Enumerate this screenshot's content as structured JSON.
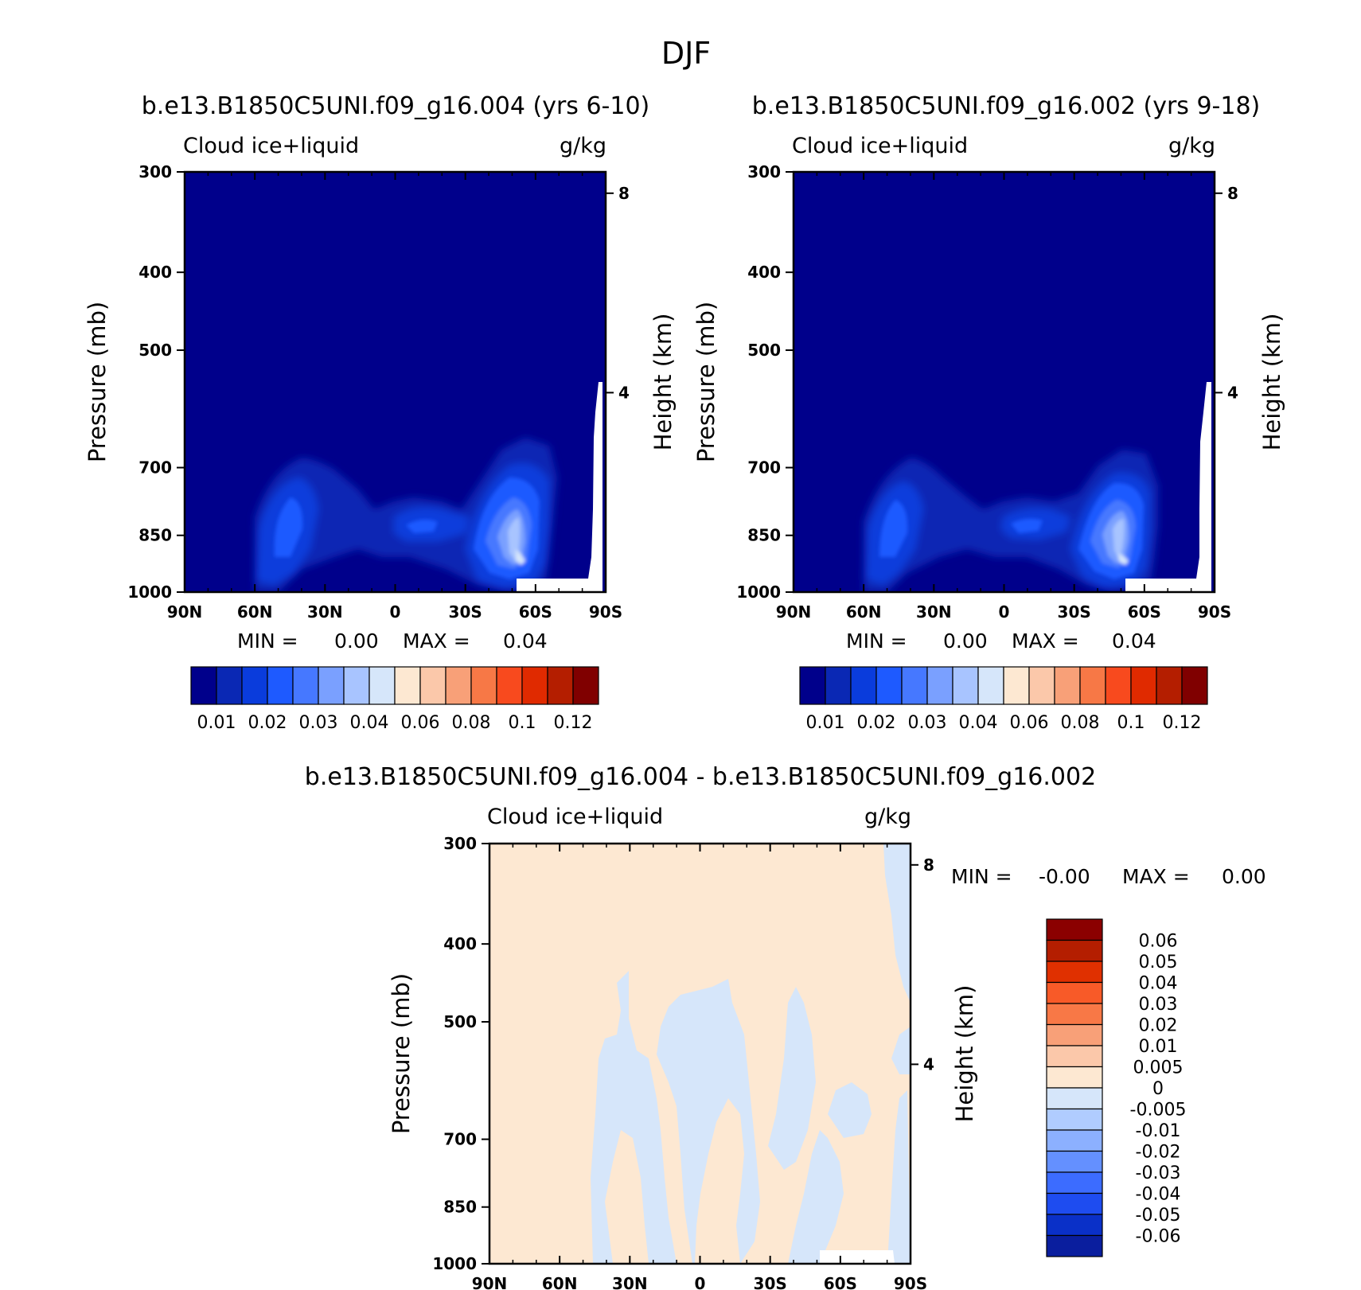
{
  "figure": {
    "title": "DJF"
  },
  "chart_data": [
    {
      "type": "heatmap",
      "title": "b.e13.B1850C5UNI.f09_g16.004 (yrs 6-10)",
      "variable_label": "Cloud ice+liquid",
      "units": "g/kg",
      "ylabel": "Pressure (mb)",
      "ylabel_right": "Height (km)",
      "x_ticks": [
        "90N",
        "60N",
        "30N",
        "0",
        "30S",
        "60S",
        "90S"
      ],
      "y_ticks": [
        "300",
        "400",
        "500",
        "700",
        "850",
        "1000"
      ],
      "y_right_ticks": [
        "8",
        "4"
      ],
      "stats": {
        "min_label": "MIN =",
        "min": "0.00",
        "max_label": "MAX =",
        "max": "0.04"
      },
      "features": [
        {
          "region": "60N-45N, 850-1000 mb",
          "value": 0.02
        },
        {
          "region": "15N-5S, ~870 mb",
          "value": 0.02
        },
        {
          "region": "40S-60S, 850-1000 mb",
          "value": 0.04
        }
      ]
    },
    {
      "type": "heatmap",
      "title": "b.e13.B1850C5UNI.f09_g16.002 (yrs 9-18)",
      "variable_label": "Cloud ice+liquid",
      "units": "g/kg",
      "ylabel": "Pressure (mb)",
      "ylabel_right": "Height (km)",
      "x_ticks": [
        "90N",
        "60N",
        "30N",
        "0",
        "30S",
        "60S",
        "90S"
      ],
      "y_ticks": [
        "300",
        "400",
        "500",
        "700",
        "850",
        "1000"
      ],
      "y_right_ticks": [
        "8",
        "4"
      ],
      "stats": {
        "min_label": "MIN =",
        "min": "0.00",
        "max_label": "MAX =",
        "max": "0.04"
      },
      "features": [
        {
          "region": "60N-45N, 850-1000 mb",
          "value": 0.02
        },
        {
          "region": "15N-5S, ~870 mb",
          "value": 0.02
        },
        {
          "region": "40S-60S, 850-1000 mb",
          "value": 0.04
        }
      ]
    },
    {
      "type": "heatmap",
      "title": "b.e13.B1850C5UNI.f09_g16.004 - b.e13.B1850C5UNI.f09_g16.002",
      "variable_label": "Cloud ice+liquid",
      "units": "g/kg",
      "ylabel": "Pressure (mb)",
      "ylabel_right": "Height (km)",
      "x_ticks": [
        "90N",
        "60N",
        "30N",
        "0",
        "30S",
        "60S",
        "90S"
      ],
      "y_ticks": [
        "300",
        "400",
        "500",
        "700",
        "850",
        "1000"
      ],
      "y_right_ticks": [
        "8",
        "4"
      ],
      "stats": {
        "min_label": "MIN =",
        "min": "-0.00",
        "max_label": "MAX =",
        "max": "0.00"
      }
    }
  ],
  "colorbar_top": {
    "colors": [
      "#00008b",
      "#0a28b4",
      "#0a3cdc",
      "#1e5aff",
      "#4678ff",
      "#7aa0ff",
      "#a8c4ff",
      "#d6e6fa",
      "#fde8d2",
      "#fbc8aa",
      "#f8a078",
      "#f77846",
      "#f84a1e",
      "#e02a00",
      "#b41e00",
      "#800000"
    ],
    "labels": [
      "0.01",
      "0.02",
      "0.03",
      "0.04",
      "0.06",
      "0.08",
      "0.1",
      "0.12"
    ]
  },
  "colorbar_diff": {
    "colors": [
      "#8b0000",
      "#b41e00",
      "#e03000",
      "#f85a28",
      "#f87846",
      "#f8a078",
      "#fbc8aa",
      "#fde8d2",
      "#d6e6fa",
      "#b0ccff",
      "#8cb0ff",
      "#6490ff",
      "#3c6cff",
      "#1e4cf0",
      "#0a30c8",
      "#0a1e9e"
    ],
    "labels": [
      "0.06",
      "0.05",
      "0.04",
      "0.03",
      "0.02",
      "0.01",
      "0.005",
      "0",
      "-0.005",
      "-0.01",
      "-0.02",
      "-0.03",
      "-0.04",
      "-0.05",
      "-0.06"
    ]
  }
}
